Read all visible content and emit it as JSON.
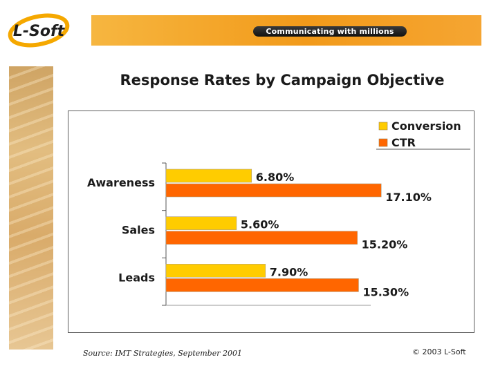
{
  "logo": {
    "text": "L-Soft"
  },
  "banner": {
    "tagline": "Communicating with millions"
  },
  "chart_data": {
    "type": "bar",
    "orientation": "horizontal",
    "title": "Response Rates by Campaign Objective",
    "categories": [
      "Awareness",
      "Sales",
      "Leads"
    ],
    "series": [
      {
        "name": "Conversion",
        "values": [
          6.8,
          5.6,
          7.9
        ],
        "labels": [
          "6.80%",
          "5.60%",
          "7.90%"
        ],
        "color": "#ffcc00"
      },
      {
        "name": "CTR",
        "values": [
          17.1,
          15.2,
          15.3
        ],
        "labels": [
          "17.10%",
          "15.20%",
          "15.30%"
        ],
        "color": "#ff6600"
      }
    ],
    "xlim": [
      0,
      20
    ],
    "grid": false,
    "legend": "top-right"
  },
  "footer": {
    "source": "Source: IMT Strategies, September 2001",
    "copyright": "© 2003 L-Soft"
  }
}
